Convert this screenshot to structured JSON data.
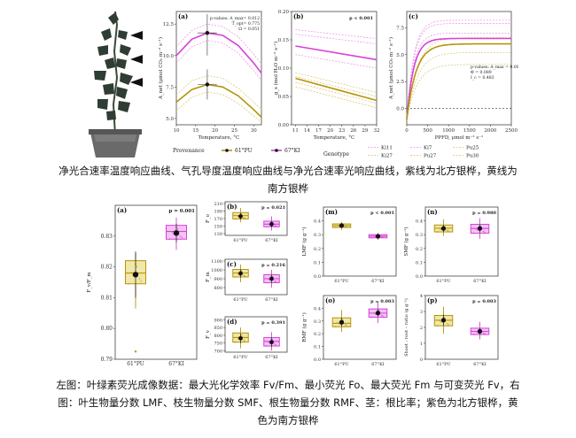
{
  "colors": {
    "north": "#d742d8",
    "south": "#b5950b",
    "north_light": "#e88fe8",
    "south_light": "#d8c46a",
    "box_north_fill": "#f3c3f4",
    "box_south_fill": "#f0e7a8"
  },
  "photo": {
    "icon": "seedling-in-pot-photo"
  },
  "captions": {
    "top_line1": "净光合速率温度响应曲线、气孔导度温度响应曲线与净光合速率光响应曲线，紫线为北方银桦，黄线为",
    "top_line2": "南方银桦",
    "bottom_line1": "左图：叶绿素荧光成像数据：最大光化学效率 Fv/Fm、最小荧光 Fo、最大荧光 Fm 与可变荧光 Fv，右",
    "bottom_line2": "图：叶生物量分数 LMF、枝生物量分数 SMF、根生物量分数 RMF、茎：根比率；紫色为北方银桦，黄",
    "bottom_line3": "色为南方银桦"
  },
  "legend": {
    "provenance_title": "Provenance",
    "provenance_items": [
      "61°PU",
      "67°KI"
    ],
    "genotype_title": "Genotype",
    "genotype_items": [
      "Ki11",
      "Ki7",
      "Pu25",
      "Ki27",
      "Pu27",
      "Pu30"
    ]
  },
  "chart_data": [
    {
      "id": "a",
      "type": "line",
      "panel": "(a)",
      "xlabel": "Temperature, °C",
      "ylabel": "A_net (μmol CO₂ m⁻² s⁻¹)",
      "xlim": [
        10,
        32
      ],
      "ylim": [
        4.5,
        13.5
      ],
      "xticks": [
        10,
        15,
        20,
        25,
        30
      ],
      "yticks": [
        "5.0",
        "7.5",
        "10.0",
        "12.5"
      ],
      "annotation": [
        "p-values: A_max= 0.012",
        "T_opt= 0.775",
        "Ω = 0.051"
      ],
      "series": [
        {
          "name": "67°KI",
          "x": [
            10,
            14,
            18,
            22,
            26,
            30,
            32
          ],
          "y": [
            10.0,
            11.3,
            11.8,
            11.6,
            10.8,
            9.4,
            8.6
          ]
        },
        {
          "name": "61°PU",
          "x": [
            10,
            14,
            18,
            22,
            26,
            30,
            32
          ],
          "y": [
            6.3,
            7.3,
            7.7,
            7.5,
            6.8,
            5.7,
            5.1
          ]
        }
      ],
      "genotype_curves_north": [
        [
          10.7,
          12.0,
          12.5,
          12.3,
          11.5,
          10.1,
          9.3
        ],
        [
          9.4,
          10.7,
          11.2,
          11.0,
          10.2,
          8.8,
          8.0
        ]
      ],
      "genotype_curves_south": [
        [
          6.9,
          8.0,
          8.4,
          8.2,
          7.4,
          6.3,
          5.7
        ],
        [
          5.6,
          6.7,
          7.1,
          6.9,
          6.2,
          5.2,
          4.7
        ]
      ],
      "points": [
        {
          "provenance": "67°KI",
          "x": 18,
          "y": 11.8,
          "err": [
            10.0,
            13.3
          ]
        },
        {
          "provenance": "61°PU",
          "x": 18,
          "y": 7.7,
          "err": [
            6.5,
            8.9
          ]
        }
      ]
    },
    {
      "id": "b",
      "type": "line",
      "panel": "(b)",
      "xlabel": "Temperature, °C",
      "ylabel": "g_s (mol H₂O m⁻² s⁻¹)",
      "xlim": [
        10,
        32
      ],
      "ylim": [
        0.0,
        0.2
      ],
      "xticks": [
        11,
        14,
        17,
        20,
        23,
        26,
        29,
        32
      ],
      "yticks": [
        "0.00",
        "0.05",
        "0.10",
        "0.15",
        "0.20"
      ],
      "annotation": [
        "p < 0.001"
      ],
      "series": [
        {
          "name": "67°KI",
          "x": [
            11,
            32
          ],
          "y": [
            0.139,
            0.115
          ]
        },
        {
          "name": "61°PU",
          "x": [
            11,
            32
          ],
          "y": [
            0.082,
            0.043
          ]
        }
      ],
      "genotype_curves_north": [
        [
          [
            11,
            32
          ],
          [
            0.168,
            0.152
          ]
        ],
        [
          [
            11,
            32
          ],
          [
            0.16,
            0.143
          ]
        ],
        [
          [
            11,
            32
          ],
          [
            0.124,
            0.1
          ]
        ]
      ],
      "genotype_curves_south": [
        [
          [
            11,
            32
          ],
          [
            0.092,
            0.057
          ]
        ],
        [
          [
            11,
            32
          ],
          [
            0.085,
            0.05
          ]
        ],
        [
          [
            11,
            32
          ],
          [
            0.075,
            0.038
          ]
        ],
        [
          [
            11,
            32
          ],
          [
            0.067,
            0.03
          ]
        ]
      ]
    },
    {
      "id": "c",
      "type": "line",
      "panel": "(c)",
      "xlabel": "PPFD, μmol m⁻² s⁻¹",
      "ylabel": "A_net (μmol CO₂ m⁻² s⁻¹)",
      "xlim": [
        0,
        2500
      ],
      "ylim": [
        -1.5,
        9.0
      ],
      "xticks": [
        0,
        500,
        1000,
        1500,
        2000,
        2500
      ],
      "yticks": [
        "0.0",
        "2.5",
        "5.0",
        "7.5"
      ],
      "annotation": [
        "p-values: A_max = 0.005",
        "Φ = 0.089",
        "I_c = 0.483"
      ],
      "series": [
        {
          "name": "67°KI",
          "amax": 6.5,
          "k": 0.006
        },
        {
          "name": "61°PU",
          "amax": 6.0,
          "k": 0.0045
        }
      ],
      "genotype_curves_north": [
        8.2,
        7.9,
        7.0
      ],
      "genotype_curves_south": [
        6.6,
        5.2,
        4.1
      ],
      "reference_line": 0
    },
    {
      "id": "a2",
      "type": "box",
      "panel": "(a)",
      "ylabel": "F_v/F_m",
      "categories": [
        "61°PU",
        "67°KI"
      ],
      "ylim": [
        0.79,
        0.84
      ],
      "yticks": [
        "0.79",
        "0.80",
        "0.81",
        "0.82",
        "0.83"
      ],
      "annotation": "p = 0.001",
      "boxes": [
        {
          "cat": "61°PU",
          "q1": 0.8145,
          "median": 0.818,
          "q3": 0.822,
          "lo": 0.8065,
          "hi": 0.8245,
          "mean": 0.8175,
          "err": [
            0.81,
            0.825
          ],
          "outliers": [
            0.7925
          ]
        },
        {
          "cat": "67°KI",
          "q1": 0.829,
          "median": 0.8315,
          "q3": 0.8335,
          "lo": 0.8255,
          "hi": 0.836,
          "mean": 0.831,
          "err": [
            0.828,
            0.834
          ],
          "outliers": []
        }
      ]
    },
    {
      "id": "b2",
      "type": "box",
      "panel": "(b)",
      "ylabel": "F_o",
      "categories": [
        "61°PU",
        "67°KI"
      ],
      "ylim": [
        125,
        215
      ],
      "yticks": [
        "130",
        "150",
        "170",
        "190",
        "210"
      ],
      "annotation": "p = 0.021",
      "boxes": [
        {
          "cat": "61°PU",
          "q1": 169,
          "median": 178,
          "q3": 186,
          "lo": 160,
          "hi": 198,
          "mean": 176,
          "err": [
            168,
            185
          ],
          "outliers": []
        },
        {
          "cat": "67°KI",
          "q1": 148,
          "median": 155,
          "q3": 163,
          "lo": 138,
          "hi": 176,
          "mean": 155,
          "err": [
            147,
            163
          ],
          "outliers": []
        }
      ]
    },
    {
      "id": "c2",
      "type": "box",
      "panel": "(c)",
      "ylabel": "F_m",
      "categories": [
        "61°PU",
        "67°KI"
      ],
      "ylim": [
        720,
        1120
      ],
      "yticks": [
        "800",
        "900",
        "1000",
        "1100"
      ],
      "annotation": "p = 0.216",
      "boxes": [
        {
          "cat": "61°PU",
          "q1": 920,
          "median": 965,
          "q3": 1005,
          "lo": 860,
          "hi": 1060,
          "mean": 960,
          "err": [
            915,
            1005
          ],
          "outliers": []
        },
        {
          "cat": "67°KI",
          "q1": 855,
          "median": 900,
          "q3": 945,
          "lo": 800,
          "hi": 1000,
          "mean": 900,
          "err": [
            855,
            945
          ],
          "outliers": []
        }
      ]
    },
    {
      "id": "d2",
      "type": "box",
      "panel": "(d)",
      "ylabel": "F_v",
      "categories": [
        "61°PU",
        "67°KI"
      ],
      "ylim": [
        690,
        920
      ],
      "yticks": [
        "700",
        "750",
        "800",
        "850",
        "900"
      ],
      "annotation": "p = 0.391",
      "boxes": [
        {
          "cat": "61°PU",
          "q1": 755,
          "median": 785,
          "q3": 815,
          "lo": 715,
          "hi": 850,
          "mean": 780,
          "err": [
            750,
            810
          ],
          "outliers": []
        },
        {
          "cat": "67°KI",
          "q1": 730,
          "median": 760,
          "q3": 785,
          "lo": 700,
          "hi": 820,
          "mean": 755,
          "err": [
            725,
            785
          ],
          "outliers": []
        }
      ]
    },
    {
      "id": "m",
      "type": "box",
      "panel": "(m)",
      "ylabel": "LMF (g g⁻¹)",
      "categories": [
        "61°PU",
        "67°KI"
      ],
      "ylim": [
        0.0,
        0.5
      ],
      "yticks": [
        "0.0",
        "0.1",
        "0.2",
        "0.3",
        "0.4"
      ],
      "annotation": "p < 0.001",
      "boxes": [
        {
          "cat": "61°PU",
          "q1": 0.352,
          "median": 0.366,
          "q3": 0.378,
          "lo": 0.335,
          "hi": 0.392,
          "mean": 0.366,
          "err": [
            0.355,
            0.377
          ],
          "outliers": []
        },
        {
          "cat": "67°KI",
          "q1": 0.277,
          "median": 0.289,
          "q3": 0.3,
          "lo": 0.262,
          "hi": 0.313,
          "mean": 0.288,
          "err": [
            0.278,
            0.298
          ],
          "outliers": []
        }
      ]
    },
    {
      "id": "n",
      "type": "box",
      "panel": "(n)",
      "ylabel": "SMF (g g⁻¹)",
      "categories": [
        "61°PU",
        "67°KI"
      ],
      "ylim": [
        0.0,
        0.5
      ],
      "yticks": [
        "0.0",
        "0.1",
        "0.2",
        "0.3",
        "0.4"
      ],
      "annotation": "p = 0.980",
      "boxes": [
        {
          "cat": "61°PU",
          "q1": 0.32,
          "median": 0.347,
          "q3": 0.37,
          "lo": 0.29,
          "hi": 0.41,
          "mean": 0.345,
          "err": [
            0.32,
            0.37
          ],
          "outliers": []
        },
        {
          "cat": "67°KI",
          "q1": 0.31,
          "median": 0.345,
          "q3": 0.375,
          "lo": 0.27,
          "hi": 0.42,
          "mean": 0.345,
          "err": [
            0.315,
            0.375
          ],
          "outliers": []
        }
      ]
    },
    {
      "id": "o",
      "type": "box",
      "panel": "(o)",
      "ylabel": "RMF (g g⁻¹)",
      "categories": [
        "61°PU",
        "67°KI"
      ],
      "ylim": [
        0.0,
        0.5
      ],
      "yticks": [
        "0.0",
        "0.1",
        "0.2",
        "0.3",
        "0.4"
      ],
      "annotation": "p = 0.003",
      "boxes": [
        {
          "cat": "61°PU",
          "q1": 0.255,
          "median": 0.282,
          "q3": 0.325,
          "lo": 0.215,
          "hi": 0.385,
          "mean": 0.29,
          "err": [
            0.255,
            0.325
          ],
          "outliers": []
        },
        {
          "cat": "67°KI",
          "q1": 0.33,
          "median": 0.362,
          "q3": 0.395,
          "lo": 0.285,
          "hi": 0.45,
          "mean": 0.363,
          "err": [
            0.335,
            0.392
          ],
          "outliers": []
        }
      ]
    },
    {
      "id": "p",
      "type": "box",
      "panel": "(p)",
      "ylabel": "Shoot : root – ratio (g g⁻¹)",
      "categories": [
        "61°PU",
        "67°KI"
      ],
      "ylim": [
        0.0,
        4.0
      ],
      "yticks": [
        "0",
        "1",
        "2",
        "3",
        "4"
      ],
      "annotation": "p = 0.003",
      "boxes": [
        {
          "cat": "61°PU",
          "q1": 2.1,
          "median": 2.45,
          "q3": 2.75,
          "lo": 1.6,
          "hi": 3.3,
          "mean": 2.45,
          "err": [
            2.1,
            2.8
          ],
          "outliers": []
        },
        {
          "cat": "67°KI",
          "q1": 1.55,
          "median": 1.75,
          "q3": 1.95,
          "lo": 1.25,
          "hi": 2.35,
          "mean": 1.75,
          "err": [
            1.55,
            1.95
          ],
          "outliers": []
        }
      ]
    }
  ]
}
